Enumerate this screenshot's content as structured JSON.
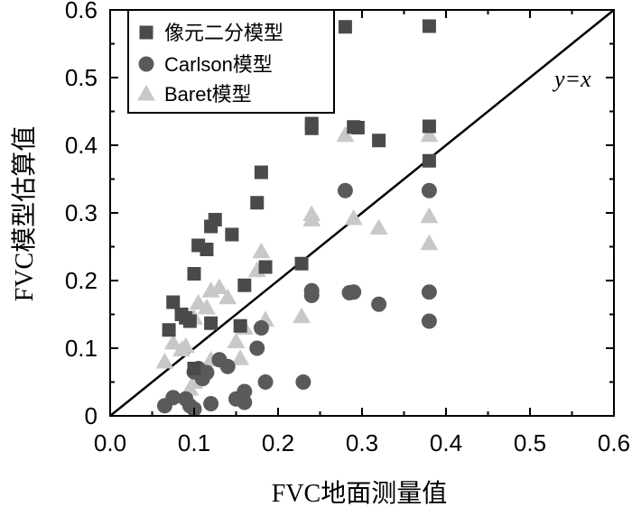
{
  "chart_data": {
    "type": "scatter",
    "xlabel": "FVC地面测量值",
    "ylabel": "FVC模型估算值",
    "xlim": [
      0,
      0.6
    ],
    "ylim": [
      0,
      0.6
    ],
    "xticks": [
      "0.0",
      "0.1",
      "0.2",
      "0.3",
      "0.4",
      "0.5",
      "0.6"
    ],
    "yticks": [
      "0",
      "0.1",
      "0.2",
      "0.3",
      "0.4",
      "0.5",
      "0.6"
    ],
    "grid": false,
    "legend_position": "top-left",
    "annotation": "y=x",
    "reference_line": {
      "from": [
        0,
        0
      ],
      "to": [
        0.6,
        0.6
      ]
    },
    "series": [
      {
        "name": "像元二分模型",
        "marker": "square",
        "color": "#4a4a4a",
        "points": [
          [
            0.07,
            0.127
          ],
          [
            0.075,
            0.168
          ],
          [
            0.085,
            0.15
          ],
          [
            0.09,
            0.145
          ],
          [
            0.095,
            0.14
          ],
          [
            0.1,
            0.21
          ],
          [
            0.105,
            0.252
          ],
          [
            0.115,
            0.246
          ],
          [
            0.12,
            0.28
          ],
          [
            0.125,
            0.29
          ],
          [
            0.12,
            0.137
          ],
          [
            0.145,
            0.268
          ],
          [
            0.155,
            0.133
          ],
          [
            0.16,
            0.193
          ],
          [
            0.175,
            0.315
          ],
          [
            0.18,
            0.36
          ],
          [
            0.185,
            0.22
          ],
          [
            0.228,
            0.225
          ],
          [
            0.24,
            0.432
          ],
          [
            0.24,
            0.425
          ],
          [
            0.28,
            0.575
          ],
          [
            0.29,
            0.427
          ],
          [
            0.295,
            0.426
          ],
          [
            0.32,
            0.407
          ],
          [
            0.38,
            0.576
          ],
          [
            0.38,
            0.428
          ],
          [
            0.38,
            0.377
          ],
          [
            0.1,
            0.07
          ]
        ]
      },
      {
        "name": "Carlson模型",
        "marker": "circle",
        "color": "#5a5a5a",
        "points": [
          [
            0.065,
            0.015
          ],
          [
            0.075,
            0.027
          ],
          [
            0.09,
            0.025
          ],
          [
            0.095,
            0.015
          ],
          [
            0.1,
            0.01
          ],
          [
            0.1,
            0.065
          ],
          [
            0.105,
            0.07
          ],
          [
            0.11,
            0.055
          ],
          [
            0.115,
            0.064
          ],
          [
            0.12,
            0.018
          ],
          [
            0.13,
            0.083
          ],
          [
            0.14,
            0.073
          ],
          [
            0.15,
            0.025
          ],
          [
            0.16,
            0.036
          ],
          [
            0.16,
            0.02
          ],
          [
            0.175,
            0.1
          ],
          [
            0.18,
            0.13
          ],
          [
            0.185,
            0.05
          ],
          [
            0.23,
            0.05
          ],
          [
            0.24,
            0.185
          ],
          [
            0.24,
            0.178
          ],
          [
            0.28,
            0.333
          ],
          [
            0.285,
            0.182
          ],
          [
            0.29,
            0.183
          ],
          [
            0.32,
            0.165
          ],
          [
            0.38,
            0.333
          ],
          [
            0.38,
            0.183
          ],
          [
            0.38,
            0.14
          ]
        ]
      },
      {
        "name": "Baret模型",
        "marker": "triangle",
        "color": "#c8c8c8",
        "points": [
          [
            0.065,
            0.08
          ],
          [
            0.075,
            0.108
          ],
          [
            0.085,
            0.098
          ],
          [
            0.09,
            0.103
          ],
          [
            0.095,
            0.04
          ],
          [
            0.1,
            0.05
          ],
          [
            0.1,
            0.145
          ],
          [
            0.105,
            0.167
          ],
          [
            0.115,
            0.16
          ],
          [
            0.12,
            0.185
          ],
          [
            0.12,
            0.083
          ],
          [
            0.13,
            0.19
          ],
          [
            0.14,
            0.175
          ],
          [
            0.15,
            0.11
          ],
          [
            0.155,
            0.085
          ],
          [
            0.16,
            0.13
          ],
          [
            0.175,
            0.215
          ],
          [
            0.18,
            0.243
          ],
          [
            0.185,
            0.142
          ],
          [
            0.228,
            0.147
          ],
          [
            0.24,
            0.29
          ],
          [
            0.24,
            0.298
          ],
          [
            0.28,
            0.415
          ],
          [
            0.29,
            0.292
          ],
          [
            0.32,
            0.278
          ],
          [
            0.38,
            0.415
          ],
          [
            0.38,
            0.295
          ],
          [
            0.38,
            0.255
          ]
        ]
      }
    ]
  }
}
